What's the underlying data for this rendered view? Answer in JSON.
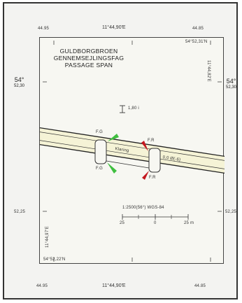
{
  "map": {
    "title_lines": [
      "GULDBORGBROEN",
      "GENNEMSEJLINGSFAG",
      "PASSAGE SPAN"
    ],
    "top_lon_left": "44.95",
    "top_lon_center": "11°44,90'E",
    "top_lon_right": "44.85",
    "bottom_lon_left": "44.95",
    "bottom_lon_center": "11°44,90'E",
    "bottom_lon_right": "44.85",
    "lat_main_deg": "54°",
    "lat_main_min": "52,30",
    "lat_lower": "52,25",
    "corner_top_right": "54°52,31'N",
    "corner_bottom_left": "54°52,22'N",
    "right_edge_text": "11°44,82'E",
    "left_edge_text": "11°44,97'E",
    "clearance_label": "1,80 i",
    "channel_name": "Klaring",
    "channel_name_2": "0,0 Ø(-6)",
    "lights": {
      "top_left": "F.G",
      "top_right": "F.R",
      "bottom_left": "F.G",
      "bottom_right": "F.R"
    },
    "scale_title": "1:2500(56°) WGS-84",
    "scale_ticks": [
      "25",
      "0",
      "25 m"
    ],
    "colors": {
      "green_light": "#3fbf3f",
      "red_light": "#c4171f",
      "bridge_fill": "#f5f3d6",
      "frame": "#333333"
    }
  }
}
